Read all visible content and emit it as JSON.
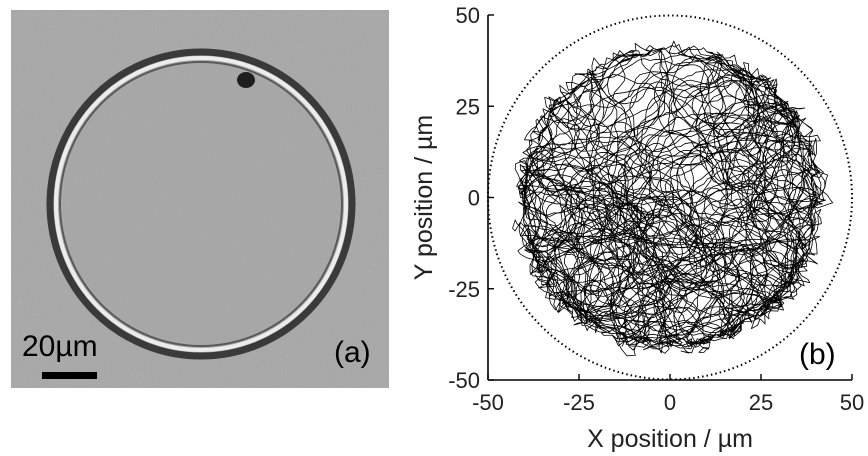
{
  "panel_a": {
    "scale_label": "20µm",
    "panel_label": "(a)"
  },
  "chart_data": {
    "type": "line",
    "title": "",
    "xlabel": "X position / µm",
    "ylabel": "Y position / µm",
    "xlim": [
      -50,
      50
    ],
    "ylim": [
      -50,
      50
    ],
    "xticks": [
      "-50",
      "-25",
      "0",
      "25",
      "50"
    ],
    "yticks": [
      "50",
      "25",
      "0",
      "-25",
      "-50"
    ],
    "boundary_radius": 50,
    "trajectory_outer_radius": 45,
    "panel_label": "(b)",
    "series": [
      {
        "name": "trajectory",
        "description": "random walk trajectory confined inside circular droplet"
      }
    ]
  },
  "colors": {
    "image_bg": "#a6a6a6",
    "ring_dark": "#2a2a2a",
    "ring_light": "#e8e8e8",
    "trace": "#000000"
  }
}
